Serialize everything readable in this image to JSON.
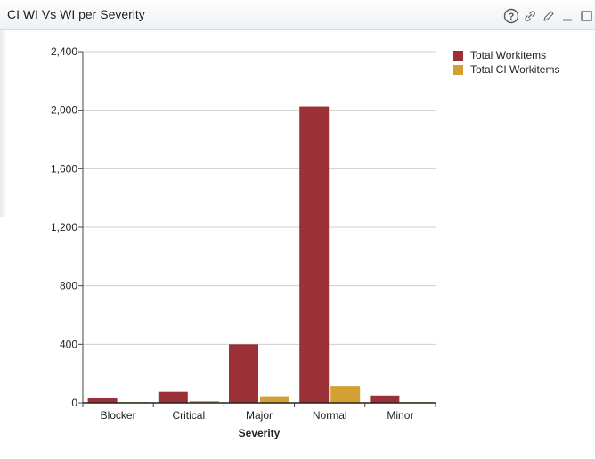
{
  "widget": {
    "title": "CI WI Vs WI per Severity",
    "toolbar": [
      "help-icon",
      "link-icon",
      "edit-icon",
      "minimize-icon",
      "maximize-icon"
    ]
  },
  "chart_data": {
    "type": "bar",
    "categories": [
      "Blocker",
      "Critical",
      "Major",
      "Normal",
      "Minor"
    ],
    "series": [
      {
        "name": "Total Workitems",
        "color": "#9b3036",
        "values": [
          35,
          75,
          400,
          2025,
          50
        ]
      },
      {
        "name": "Total CI Workitems",
        "color": "#d4a032",
        "values": [
          5,
          12,
          45,
          115,
          5
        ]
      }
    ],
    "xlabel": "Severity",
    "ylabel": "",
    "ylim": [
      0,
      2400
    ],
    "yticks": [
      0,
      400,
      800,
      1200,
      1600,
      2000,
      2400
    ],
    "ytick_labels": [
      "0",
      "400",
      "800",
      "1,200",
      "1,600",
      "2,000",
      "2,400"
    ],
    "grid": true,
    "legend_position": "top-right"
  }
}
